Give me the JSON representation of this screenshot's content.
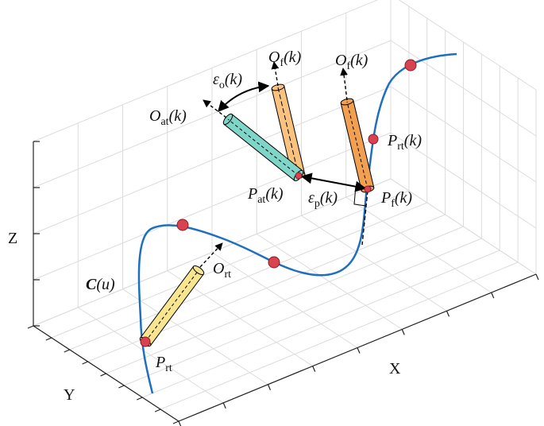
{
  "axes": {
    "x": "X",
    "y": "Y",
    "z": "Z"
  },
  "labels": [
    {
      "main": "O",
      "sub": "f",
      "arg": "(k)"
    },
    {
      "main": "O",
      "sub": "f",
      "arg": "(k)"
    },
    {
      "main": "ε",
      "sub": "o",
      "arg": "(k)"
    },
    {
      "main": "O",
      "sub": "at",
      "arg": "(k)"
    },
    {
      "main": "P",
      "sub": "rt",
      "arg": "(k)"
    },
    {
      "main": "P",
      "sub": "at",
      "arg": "(k)"
    },
    {
      "main": "ε",
      "sub": "p",
      "arg": "(k)"
    },
    {
      "main": "P",
      "sub": "f",
      "arg": "(k)"
    },
    {
      "main": "O",
      "sub": "rt"
    },
    {
      "main": "C",
      "arg": "(u)"
    },
    {
      "main": "P",
      "sub": "rt"
    }
  ]
}
